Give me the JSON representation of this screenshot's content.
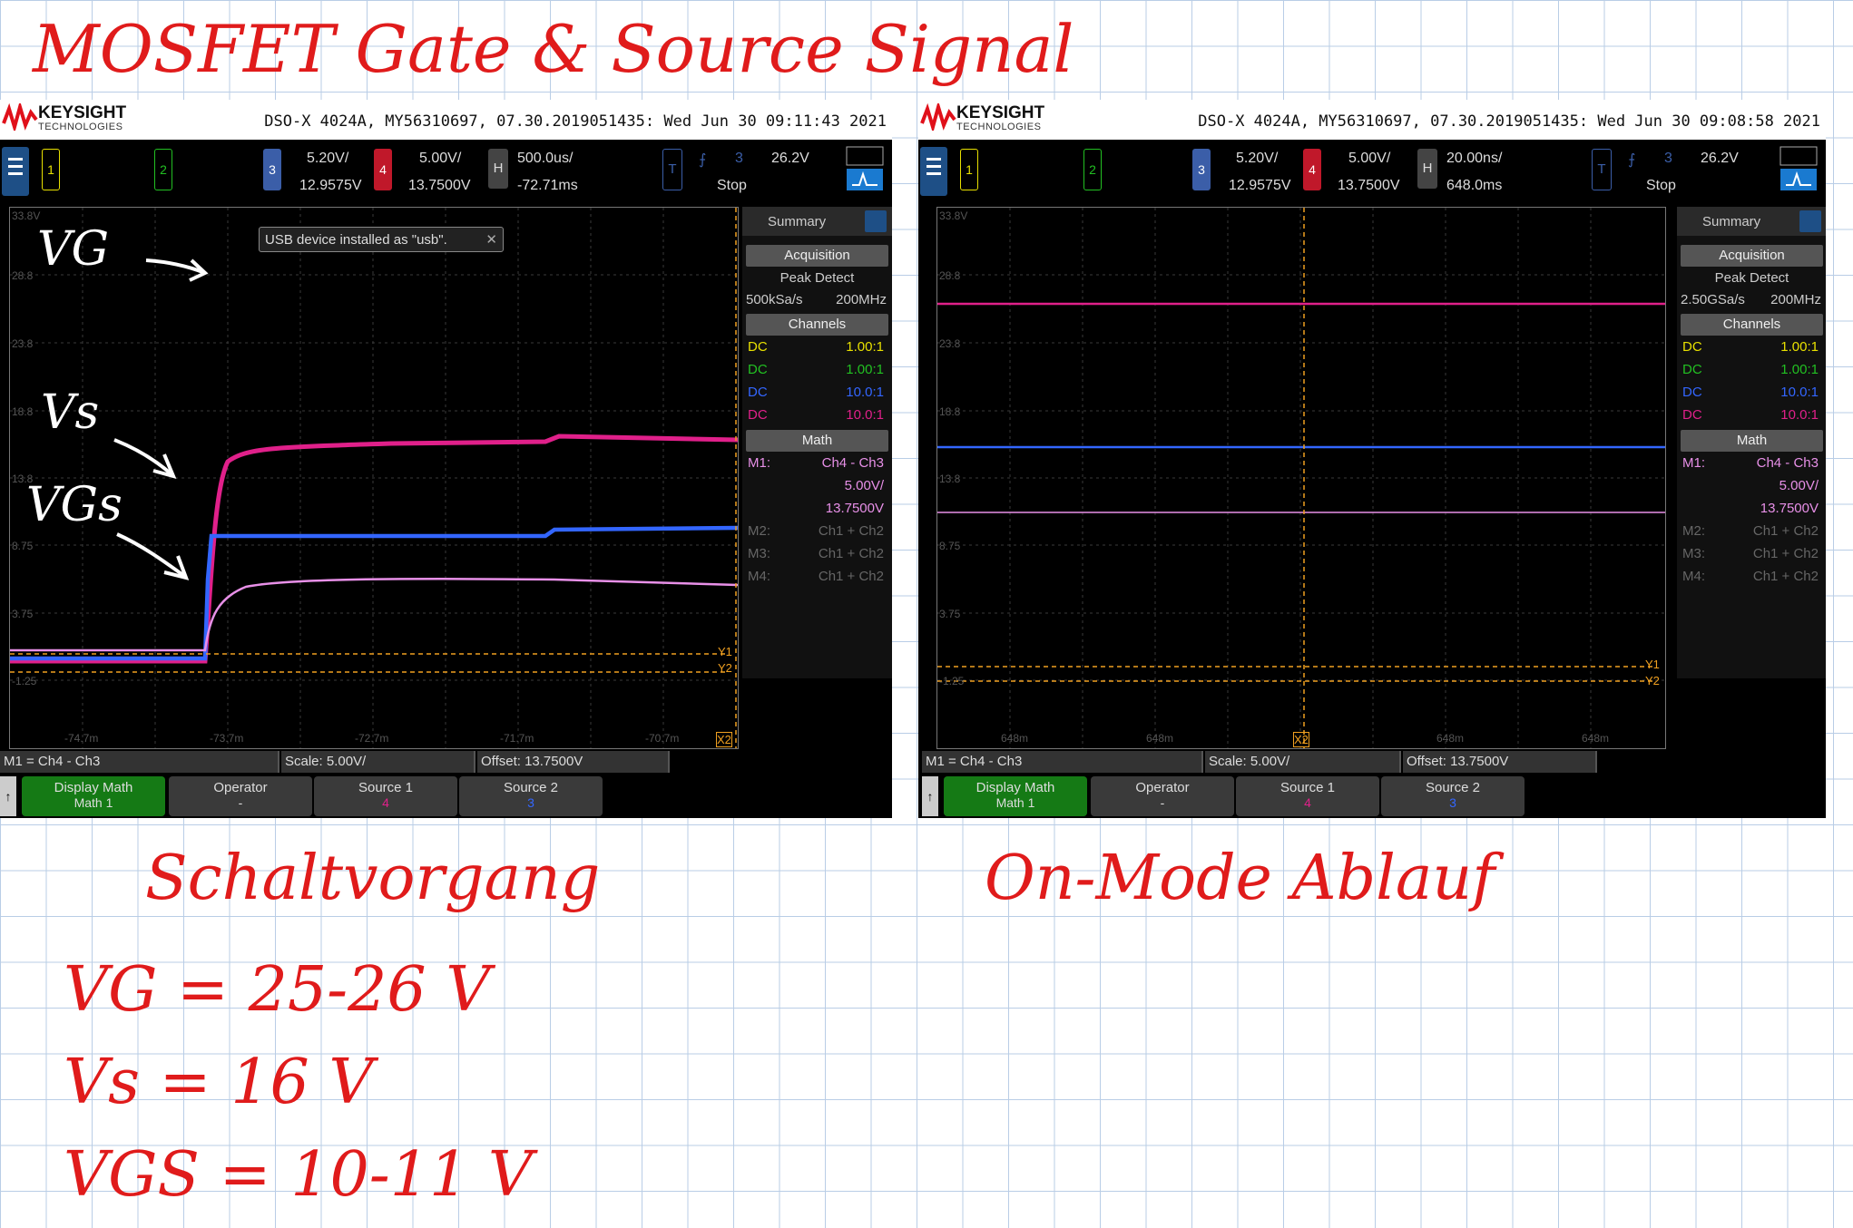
{
  "title": "MOSFET Gate & Source Signal",
  "scope_left": {
    "brand": "KEYSIGHT",
    "brand_sub": "TECHNOLOGIES",
    "model_line": "DSO-X 4024A, MY56310697, 07.30.2019051435: Wed Jun 30 09:11:43 2021",
    "ch3_scale": "5.20V/",
    "ch3_offset": "12.9575V",
    "ch4_scale": "5.00V/",
    "ch4_offset": "13.7500V",
    "h_scale": "500.0us/",
    "h_pos": "-72.71ms",
    "trig_level": "26.2V",
    "trig_state": "Stop",
    "ch_num_1": "1",
    "ch_num_2": "2",
    "ch_num_3": "3",
    "ch_num_4": "4",
    "h_label": "H",
    "t_label": "T",
    "trig_src": "3",
    "usb_msg": "USB device installed as \"usb\".",
    "y_labels": [
      "33.8V",
      "28.8",
      "23.8",
      "18.8",
      "13.8",
      "8.75",
      "3.75",
      "-1.25"
    ],
    "x_labels": [
      "-74.7m",
      "-73.7m",
      "-72.7m",
      "-71.7m",
      "-70.7m"
    ],
    "annotations": {
      "vg": "VG",
      "vs": "Vs",
      "vgs": "VGs"
    },
    "markers": {
      "y1": "Y1",
      "y2": "Y2",
      "x2": "X2"
    },
    "summary": "Summary",
    "acquisition": "Acquisition",
    "acq_mode": "Peak Detect",
    "acq_rate": "500kSa/s",
    "acq_bw": "200MHz",
    "channels": "Channels",
    "ch_rows": [
      {
        "coupling": "DC",
        "ratio": "1.00:1",
        "color": "#e8e000"
      },
      {
        "coupling": "DC",
        "ratio": "1.00:1",
        "color": "#22c022"
      },
      {
        "coupling": "DC",
        "ratio": "10.0:1",
        "color": "#3366ff"
      },
      {
        "coupling": "DC",
        "ratio": "10.0:1",
        "color": "#e0208a"
      }
    ],
    "math": "Math",
    "math_rows": [
      {
        "name": "M1:",
        "expr": "Ch4 - Ch3",
        "active": true
      },
      {
        "name": "",
        "expr": "5.00V/",
        "active": true
      },
      {
        "name": "",
        "expr": "13.7500V",
        "active": true
      },
      {
        "name": "M2:",
        "expr": "Ch1 + Ch2",
        "active": false
      },
      {
        "name": "M3:",
        "expr": "Ch1 + Ch2",
        "active": false
      },
      {
        "name": "M4:",
        "expr": "Ch1 + Ch2",
        "active": false
      }
    ],
    "m1_def": "M1 = Ch4 - Ch3",
    "m1_scale": "Scale: 5.00V/",
    "m1_offset": "Offset: 13.7500V",
    "softkeys": [
      {
        "label": "Display Math",
        "value": "Math 1"
      },
      {
        "label": "Operator",
        "value": "-"
      },
      {
        "label": "Source 1",
        "value": "4"
      },
      {
        "label": "Source 2",
        "value": "3"
      }
    ]
  },
  "scope_right": {
    "brand": "KEYSIGHT",
    "brand_sub": "TECHNOLOGIES",
    "model_line": "DSO-X 4024A, MY56310697, 07.30.2019051435: Wed Jun 30 09:08:58 2021",
    "ch3_scale": "5.20V/",
    "ch3_offset": "12.9575V",
    "ch4_scale": "5.00V/",
    "ch4_offset": "13.7500V",
    "h_scale": "20.00ns/",
    "h_pos": "648.0ms",
    "trig_level": "26.2V",
    "trig_state": "Stop",
    "ch_num_1": "1",
    "ch_num_2": "2",
    "ch_num_3": "3",
    "ch_num_4": "4",
    "h_label": "H",
    "t_label": "T",
    "trig_src": "3",
    "y_labels": [
      "33.8V",
      "28.8",
      "23.8",
      "18.8",
      "13.8",
      "8.75",
      "3.75",
      "-1.25"
    ],
    "x_labels": [
      "648m",
      "648m",
      "648m",
      "648m"
    ],
    "markers": {
      "y1": "Y1",
      "y2": "Y2",
      "x2": "X2"
    },
    "summary": "Summary",
    "acquisition": "Acquisition",
    "acq_mode": "Peak Detect",
    "acq_rate": "2.50GSa/s",
    "acq_bw": "200MHz",
    "channels": "Channels",
    "ch_rows": [
      {
        "coupling": "DC",
        "ratio": "1.00:1",
        "color": "#e8e000"
      },
      {
        "coupling": "DC",
        "ratio": "1.00:1",
        "color": "#22c022"
      },
      {
        "coupling": "DC",
        "ratio": "10.0:1",
        "color": "#3366ff"
      },
      {
        "coupling": "DC",
        "ratio": "10.0:1",
        "color": "#e0208a"
      }
    ],
    "math": "Math",
    "math_rows": [
      {
        "name": "M1:",
        "expr": "Ch4 - Ch3",
        "active": true
      },
      {
        "name": "",
        "expr": "5.00V/",
        "active": true
      },
      {
        "name": "",
        "expr": "13.7500V",
        "active": true
      },
      {
        "name": "M2:",
        "expr": "Ch1 + Ch2",
        "active": false
      },
      {
        "name": "M3:",
        "expr": "Ch1 + Ch2",
        "active": false
      },
      {
        "name": "M4:",
        "expr": "Ch1 + Ch2",
        "active": false
      }
    ],
    "m1_def": "M1 = Ch4 - Ch3",
    "m1_scale": "Scale: 5.00V/",
    "m1_offset": "Offset: 13.7500V",
    "softkeys": [
      {
        "label": "Display Math",
        "value": "Math 1"
      },
      {
        "label": "Operator",
        "value": "-"
      },
      {
        "label": "Source 1",
        "value": "4"
      },
      {
        "label": "Source 2",
        "value": "3"
      }
    ]
  },
  "captions": {
    "left": "Schaltvorgang",
    "right": "On-Mode Ablauf"
  },
  "notes": {
    "vg": "VG = 25-26 V",
    "vs": "Vs = 16 V",
    "vgs": "VGS = 10-11 V"
  },
  "colors": {
    "ink_red": "#e01b1b",
    "ch3_blue": "#3366ff",
    "ch4_magenta": "#e0208a",
    "math_pink": "#e890e8",
    "trigger_orange": "#f0a020",
    "keysight_red": "#e0101a"
  }
}
